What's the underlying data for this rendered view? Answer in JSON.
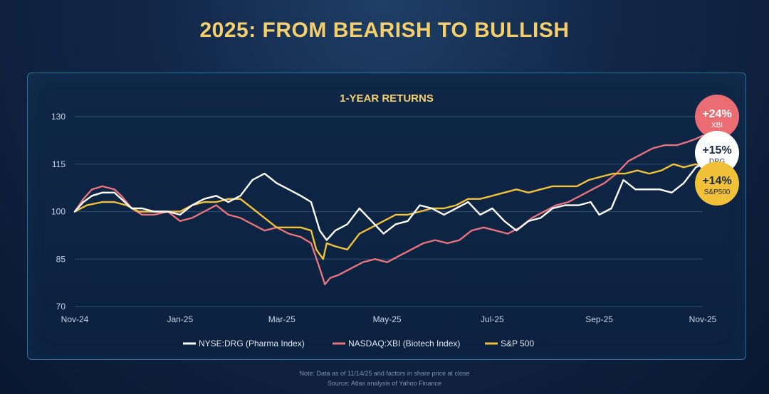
{
  "page": {
    "title": "2025: FROM BEARISH TO BULLISH",
    "note": "Note: Data as of 11/14/25 and factors in share price at close",
    "source": "Source: Atlas analysis of Yahoo Finance"
  },
  "colors": {
    "drg": "#ffffff",
    "xbi": "#e8737d",
    "sp500": "#f2c13a",
    "title": "#f4cf6b",
    "grid": "#2d4d74"
  },
  "chart_data": {
    "type": "line",
    "title": "1-YEAR RETURNS",
    "xlabel": "",
    "ylabel": "",
    "ylim": [
      70,
      130
    ],
    "yticks": [
      70,
      85,
      100,
      115,
      130
    ],
    "xlim": [
      "2024-11-15",
      "2025-11-14"
    ],
    "xticks": [
      {
        "date": "2024-11-15",
        "label": "Nov-24"
      },
      {
        "date": "2025-01-15",
        "label": "Jan-25"
      },
      {
        "date": "2025-03-15",
        "label": "Mar-25"
      },
      {
        "date": "2025-05-15",
        "label": "May-25"
      },
      {
        "date": "2025-07-15",
        "label": "Jul-25"
      },
      {
        "date": "2025-09-15",
        "label": "Sep-25"
      },
      {
        "date": "2025-11-14",
        "label": "Nov-25"
      }
    ],
    "grid": true,
    "legend_position": "bottom",
    "series": [
      {
        "name": "NYSE:DRG (Pharma Index)",
        "color": "#ffffff",
        "end_label": "+15%",
        "end_sublabel": "DRG",
        "points": [
          [
            "2024-11-15",
            100
          ],
          [
            "2024-11-20",
            103
          ],
          [
            "2024-11-25",
            105
          ],
          [
            "2024-12-01",
            106
          ],
          [
            "2024-12-08",
            106
          ],
          [
            "2024-12-12",
            104
          ],
          [
            "2024-12-18",
            101
          ],
          [
            "2024-12-24",
            101
          ],
          [
            "2024-12-31",
            100
          ],
          [
            "2025-01-08",
            100
          ],
          [
            "2025-01-15",
            99
          ],
          [
            "2025-01-22",
            102
          ],
          [
            "2025-01-29",
            104
          ],
          [
            "2025-02-05",
            105
          ],
          [
            "2025-02-12",
            103
          ],
          [
            "2025-02-19",
            105
          ],
          [
            "2025-02-26",
            110
          ],
          [
            "2025-03-05",
            112
          ],
          [
            "2025-03-12",
            109
          ],
          [
            "2025-03-19",
            107
          ],
          [
            "2025-03-26",
            105
          ],
          [
            "2025-04-01",
            103
          ],
          [
            "2025-04-06",
            94
          ],
          [
            "2025-04-10",
            91
          ],
          [
            "2025-04-15",
            94
          ],
          [
            "2025-04-22",
            96
          ],
          [
            "2025-04-29",
            101
          ],
          [
            "2025-05-06",
            97
          ],
          [
            "2025-05-13",
            93
          ],
          [
            "2025-05-20",
            96
          ],
          [
            "2025-05-27",
            97
          ],
          [
            "2025-06-03",
            102
          ],
          [
            "2025-06-10",
            101
          ],
          [
            "2025-06-17",
            99
          ],
          [
            "2025-06-24",
            101
          ],
          [
            "2025-07-01",
            103
          ],
          [
            "2025-07-08",
            99
          ],
          [
            "2025-07-15",
            101
          ],
          [
            "2025-07-22",
            97
          ],
          [
            "2025-07-29",
            94
          ],
          [
            "2025-08-05",
            97
          ],
          [
            "2025-08-12",
            98
          ],
          [
            "2025-08-19",
            101
          ],
          [
            "2025-08-26",
            102
          ],
          [
            "2025-09-03",
            102
          ],
          [
            "2025-09-10",
            103
          ],
          [
            "2025-09-15",
            99
          ],
          [
            "2025-09-22",
            101
          ],
          [
            "2025-09-29",
            110
          ],
          [
            "2025-10-06",
            107
          ],
          [
            "2025-10-13",
            107
          ],
          [
            "2025-10-20",
            107
          ],
          [
            "2025-10-27",
            106
          ],
          [
            "2025-11-03",
            109
          ],
          [
            "2025-11-10",
            114
          ],
          [
            "2025-11-14",
            115
          ]
        ]
      },
      {
        "name": "NASDAQ:XBI (Biotech Index)",
        "color": "#e8737d",
        "end_label": "+24%",
        "end_sublabel": "XBI",
        "points": [
          [
            "2024-11-15",
            100
          ],
          [
            "2024-11-20",
            104
          ],
          [
            "2024-11-25",
            107
          ],
          [
            "2024-12-01",
            108
          ],
          [
            "2024-12-08",
            107
          ],
          [
            "2024-12-12",
            105
          ],
          [
            "2024-12-18",
            101
          ],
          [
            "2024-12-24",
            99
          ],
          [
            "2024-12-31",
            99
          ],
          [
            "2025-01-08",
            100
          ],
          [
            "2025-01-15",
            97
          ],
          [
            "2025-01-22",
            98
          ],
          [
            "2025-01-29",
            100
          ],
          [
            "2025-02-05",
            102
          ],
          [
            "2025-02-12",
            99
          ],
          [
            "2025-02-19",
            98
          ],
          [
            "2025-02-26",
            96
          ],
          [
            "2025-03-05",
            94
          ],
          [
            "2025-03-12",
            95
          ],
          [
            "2025-03-19",
            93
          ],
          [
            "2025-03-26",
            92
          ],
          [
            "2025-04-01",
            90
          ],
          [
            "2025-04-06",
            82
          ],
          [
            "2025-04-09",
            77
          ],
          [
            "2025-04-12",
            79
          ],
          [
            "2025-04-17",
            80
          ],
          [
            "2025-04-24",
            82
          ],
          [
            "2025-05-01",
            84
          ],
          [
            "2025-05-08",
            85
          ],
          [
            "2025-05-15",
            84
          ],
          [
            "2025-05-22",
            86
          ],
          [
            "2025-05-29",
            88
          ],
          [
            "2025-06-05",
            90
          ],
          [
            "2025-06-12",
            91
          ],
          [
            "2025-06-19",
            90
          ],
          [
            "2025-06-26",
            91
          ],
          [
            "2025-07-03",
            94
          ],
          [
            "2025-07-10",
            95
          ],
          [
            "2025-07-17",
            94
          ],
          [
            "2025-07-24",
            93
          ],
          [
            "2025-07-31",
            95
          ],
          [
            "2025-08-07",
            98
          ],
          [
            "2025-08-14",
            100
          ],
          [
            "2025-08-21",
            102
          ],
          [
            "2025-08-28",
            103
          ],
          [
            "2025-09-04",
            105
          ],
          [
            "2025-09-11",
            107
          ],
          [
            "2025-09-18",
            109
          ],
          [
            "2025-09-25",
            112
          ],
          [
            "2025-10-02",
            116
          ],
          [
            "2025-10-09",
            118
          ],
          [
            "2025-10-16",
            120
          ],
          [
            "2025-10-23",
            121
          ],
          [
            "2025-10-30",
            121
          ],
          [
            "2025-11-05",
            122
          ],
          [
            "2025-11-10",
            123
          ],
          [
            "2025-11-14",
            124
          ]
        ]
      },
      {
        "name": "S&P 500",
        "color": "#f2c13a",
        "end_label": "+14%",
        "end_sublabel": "S&P500",
        "points": [
          [
            "2024-11-15",
            100
          ],
          [
            "2024-11-22",
            102
          ],
          [
            "2024-12-01",
            103
          ],
          [
            "2024-12-08",
            103
          ],
          [
            "2024-12-15",
            102
          ],
          [
            "2024-12-22",
            100
          ],
          [
            "2024-12-31",
            100
          ],
          [
            "2025-01-08",
            100
          ],
          [
            "2025-01-15",
            100
          ],
          [
            "2025-01-22",
            102
          ],
          [
            "2025-01-29",
            103
          ],
          [
            "2025-02-05",
            103
          ],
          [
            "2025-02-12",
            104
          ],
          [
            "2025-02-19",
            104
          ],
          [
            "2025-02-26",
            101
          ],
          [
            "2025-03-05",
            98
          ],
          [
            "2025-03-12",
            95
          ],
          [
            "2025-03-19",
            95
          ],
          [
            "2025-03-26",
            95
          ],
          [
            "2025-04-01",
            94
          ],
          [
            "2025-04-04",
            88
          ],
          [
            "2025-04-08",
            85
          ],
          [
            "2025-04-10",
            90
          ],
          [
            "2025-04-15",
            89
          ],
          [
            "2025-04-22",
            88
          ],
          [
            "2025-04-29",
            93
          ],
          [
            "2025-05-06",
            95
          ],
          [
            "2025-05-13",
            97
          ],
          [
            "2025-05-20",
            99
          ],
          [
            "2025-05-27",
            99
          ],
          [
            "2025-06-03",
            100
          ],
          [
            "2025-06-10",
            101
          ],
          [
            "2025-06-17",
            101
          ],
          [
            "2025-06-24",
            102
          ],
          [
            "2025-07-01",
            104
          ],
          [
            "2025-07-08",
            104
          ],
          [
            "2025-07-15",
            105
          ],
          [
            "2025-07-22",
            106
          ],
          [
            "2025-07-29",
            107
          ],
          [
            "2025-08-05",
            106
          ],
          [
            "2025-08-12",
            107
          ],
          [
            "2025-08-19",
            108
          ],
          [
            "2025-08-26",
            108
          ],
          [
            "2025-09-02",
            108
          ],
          [
            "2025-09-09",
            110
          ],
          [
            "2025-09-16",
            111
          ],
          [
            "2025-09-23",
            112
          ],
          [
            "2025-09-30",
            112
          ],
          [
            "2025-10-07",
            113
          ],
          [
            "2025-10-14",
            112
          ],
          [
            "2025-10-21",
            113
          ],
          [
            "2025-10-28",
            115
          ],
          [
            "2025-11-03",
            114
          ],
          [
            "2025-11-10",
            115
          ],
          [
            "2025-11-14",
            114
          ]
        ]
      }
    ]
  }
}
